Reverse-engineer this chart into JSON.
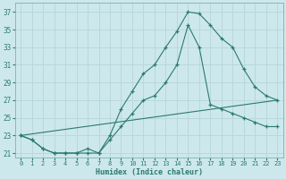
{
  "xlabel": "Humidex (Indice chaleur)",
  "bg_color": "#cde8ec",
  "grid_color": "#b8d8dc",
  "line_color": "#2a7a70",
  "xlim": [
    -0.5,
    23.5
  ],
  "ylim": [
    20.5,
    38.0
  ],
  "xticks": [
    0,
    1,
    2,
    3,
    4,
    5,
    6,
    7,
    8,
    9,
    10,
    11,
    12,
    13,
    14,
    15,
    16,
    17,
    18,
    19,
    20,
    21,
    22,
    23
  ],
  "yticks": [
    21,
    23,
    25,
    27,
    29,
    31,
    33,
    35,
    37
  ],
  "series1_x": [
    0,
    1,
    2,
    3,
    4,
    5,
    6,
    7,
    8,
    9,
    10,
    11,
    12,
    13,
    14,
    15,
    16,
    17,
    18,
    19,
    20,
    21,
    22,
    23
  ],
  "series1_y": [
    23,
    22.5,
    21.5,
    21,
    21,
    21,
    21,
    21,
    23,
    26,
    28,
    30,
    31,
    33,
    34.8,
    37,
    36.8,
    35.5,
    34,
    33,
    30.5,
    28.5,
    27.5,
    27
  ],
  "series2_x": [
    0,
    1,
    2,
    3,
    4,
    5,
    6,
    7,
    8,
    9,
    10,
    11,
    12,
    13,
    14,
    15,
    16,
    17,
    18,
    19,
    20,
    21,
    22,
    23
  ],
  "series2_y": [
    23,
    22.5,
    21.5,
    21,
    21,
    21,
    21.5,
    21,
    22.5,
    24,
    25.5,
    27,
    27.5,
    29,
    31,
    35.5,
    33,
    26.5,
    26,
    25.5,
    25,
    24.5,
    24,
    24
  ],
  "series3_x": [
    0,
    23
  ],
  "series3_y": [
    23,
    27
  ]
}
